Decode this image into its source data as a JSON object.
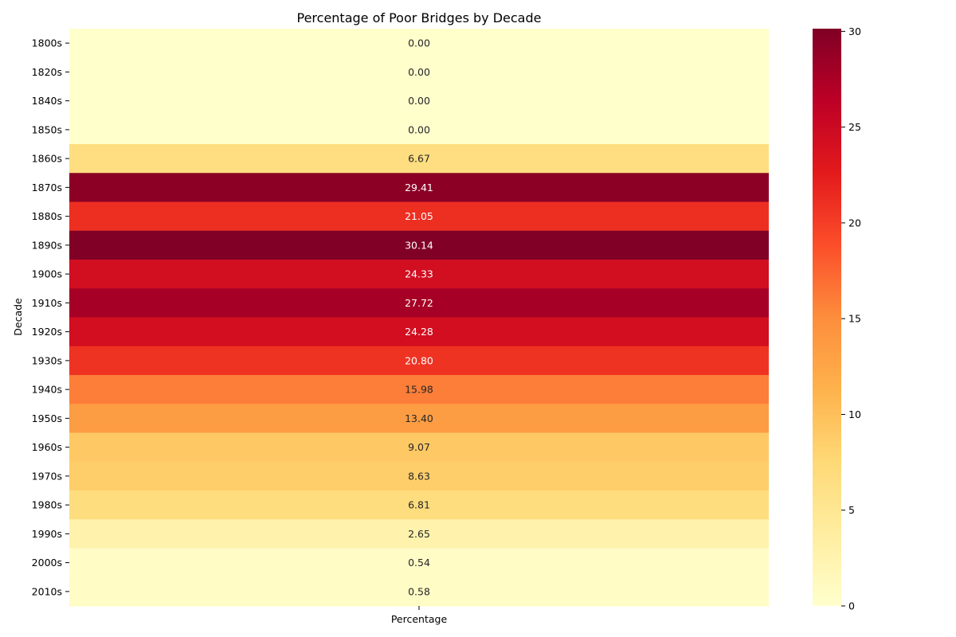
{
  "chart_data": {
    "type": "heatmap",
    "title": "Percentage of Poor Bridges by Decade",
    "xlabel": "Percentage",
    "ylabel": "Decade",
    "columns": [
      "Percentage"
    ],
    "rows": [
      "1800s",
      "1820s",
      "1840s",
      "1850s",
      "1860s",
      "1870s",
      "1880s",
      "1890s",
      "1900s",
      "1910s",
      "1920s",
      "1930s",
      "1940s",
      "1950s",
      "1960s",
      "1970s",
      "1980s",
      "1990s",
      "2000s",
      "2010s"
    ],
    "values": [
      0.0,
      0.0,
      0.0,
      0.0,
      6.67,
      29.41,
      21.05,
      30.14,
      24.33,
      27.72,
      24.28,
      20.8,
      15.98,
      13.4,
      9.07,
      8.63,
      6.81,
      2.65,
      0.54,
      0.58
    ],
    "value_labels": [
      "0.00",
      "0.00",
      "0.00",
      "0.00",
      "6.67",
      "29.41",
      "21.05",
      "30.14",
      "24.33",
      "27.72",
      "24.28",
      "20.80",
      "15.98",
      "13.40",
      "9.07",
      "8.63",
      "6.81",
      "2.65",
      "0.54",
      "0.58"
    ],
    "colormap": "YlOrRd",
    "colorbar": {
      "min": 0,
      "max": 30.14,
      "ticks": [
        0,
        5,
        10,
        15,
        20,
        25,
        30
      ],
      "tick_labels": [
        "0",
        "5",
        "10",
        "15",
        "20",
        "25",
        "30"
      ]
    },
    "grid": false,
    "legend": "colorbar-right"
  }
}
